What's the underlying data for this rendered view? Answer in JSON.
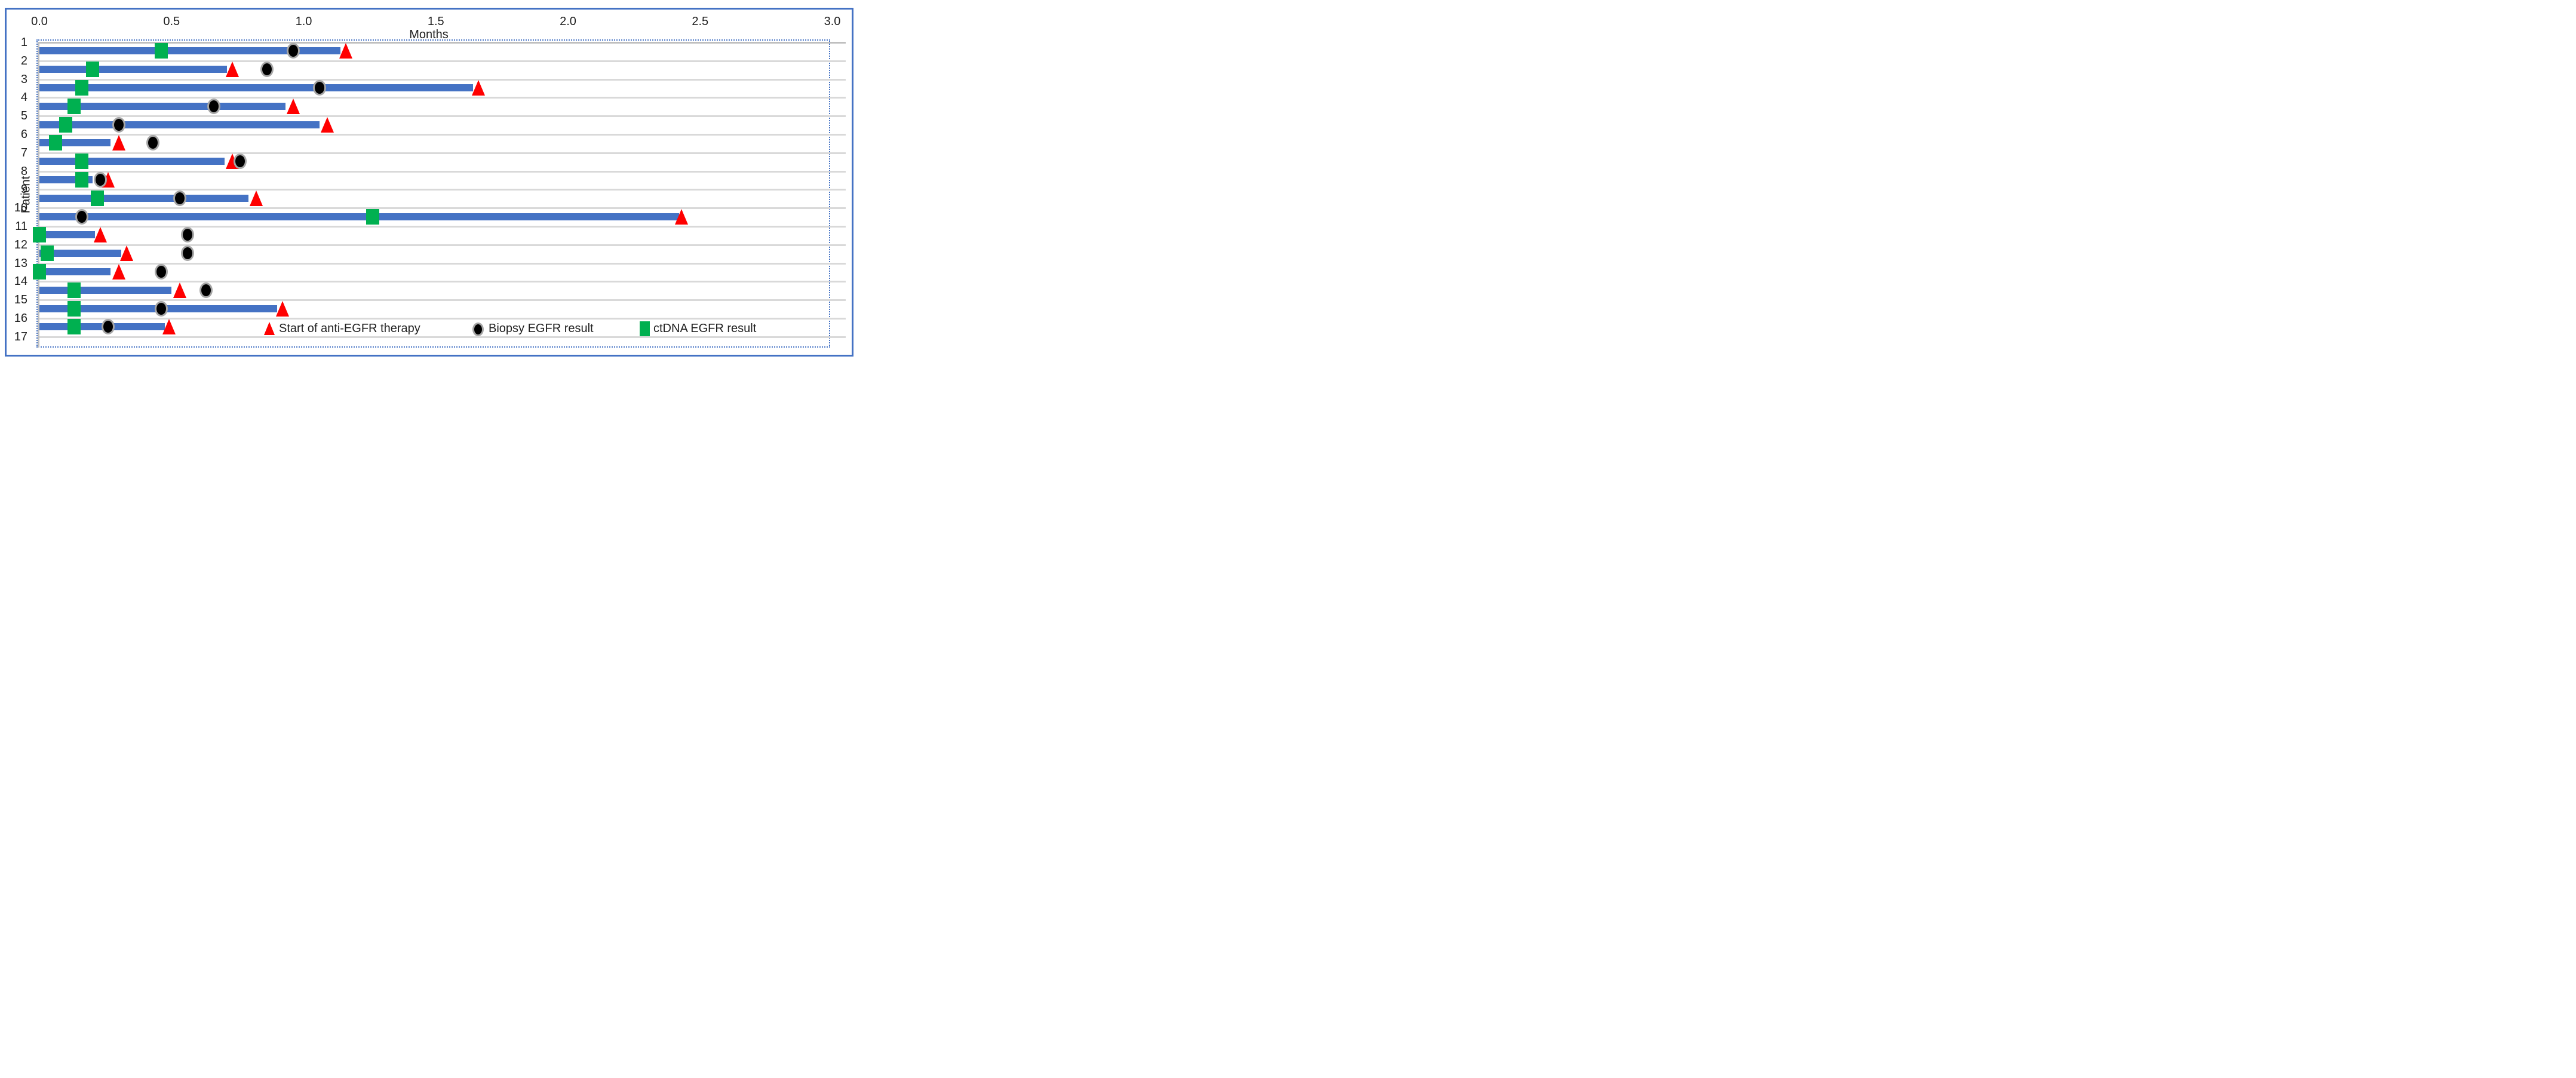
{
  "chart_data": {
    "type": "bar",
    "orientation": "horizontal",
    "title": "",
    "xlabel": "Months",
    "ylabel": "Patient",
    "xlim": [
      0.0,
      3.0
    ],
    "x_ticks": [
      "0.0",
      "0.5",
      "1.0",
      "1.5",
      "2.0",
      "2.5",
      "3.0"
    ],
    "y_ticks": [
      "1",
      "2",
      "3",
      "4",
      "5",
      "6",
      "7",
      "8",
      "9",
      "10",
      "11",
      "12",
      "13",
      "14",
      "15",
      "16",
      "17"
    ],
    "grid": "horizontal-gridlines-on",
    "legend_position": "inside-bottom-right",
    "series_legend": [
      {
        "marker": "red-triangle",
        "label": "Start of anti-EGFR therapy"
      },
      {
        "marker": "black-circle",
        "label": "Biopsy EGFR result"
      },
      {
        "marker": "green-square",
        "label": "ctDNA EGFR result"
      }
    ],
    "patients": [
      {
        "patient": 1,
        "bar_end_months": 1.14,
        "ctdna_egfr_months": 0.46,
        "biopsy_egfr_months": 0.96,
        "therapy_start_months": 1.16
      },
      {
        "patient": 2,
        "bar_end_months": 0.71,
        "ctdna_egfr_months": 0.2,
        "biopsy_egfr_months": 0.86,
        "therapy_start_months": 0.73
      },
      {
        "patient": 3,
        "bar_end_months": 1.64,
        "ctdna_egfr_months": 0.16,
        "biopsy_egfr_months": 1.06,
        "therapy_start_months": 1.66
      },
      {
        "patient": 4,
        "bar_end_months": 0.93,
        "ctdna_egfr_months": 0.13,
        "biopsy_egfr_months": 0.66,
        "therapy_start_months": 0.96
      },
      {
        "patient": 5,
        "bar_end_months": 1.06,
        "ctdna_egfr_months": 0.1,
        "biopsy_egfr_months": 0.3,
        "therapy_start_months": 1.09
      },
      {
        "patient": 6,
        "bar_end_months": 0.27,
        "ctdna_egfr_months": 0.06,
        "biopsy_egfr_months": 0.43,
        "therapy_start_months": 0.3
      },
      {
        "patient": 7,
        "bar_end_months": 0.7,
        "ctdna_egfr_months": 0.16,
        "biopsy_egfr_months": 0.76,
        "therapy_start_months": 0.73
      },
      {
        "patient": 8,
        "bar_end_months": 0.2,
        "ctdna_egfr_months": 0.16,
        "biopsy_egfr_months": 0.23,
        "therapy_start_months": 0.26
      },
      {
        "patient": 9,
        "bar_end_months": 0.79,
        "ctdna_egfr_months": 0.22,
        "biopsy_egfr_months": 0.53,
        "therapy_start_months": 0.82
      },
      {
        "patient": 10,
        "bar_end_months": 2.42,
        "ctdna_egfr_months": 1.26,
        "biopsy_egfr_months": 0.16,
        "therapy_start_months": 2.43
      },
      {
        "patient": 11,
        "bar_end_months": 0.21,
        "ctdna_egfr_months": 0.0,
        "biopsy_egfr_months": 0.56,
        "therapy_start_months": 0.23
      },
      {
        "patient": 12,
        "bar_end_months": 0.31,
        "ctdna_egfr_months": 0.03,
        "biopsy_egfr_months": 0.56,
        "therapy_start_months": 0.33
      },
      {
        "patient": 13,
        "bar_end_months": 0.27,
        "ctdna_egfr_months": 0.0,
        "biopsy_egfr_months": 0.46,
        "therapy_start_months": 0.3
      },
      {
        "patient": 14,
        "bar_end_months": 0.5,
        "ctdna_egfr_months": 0.13,
        "biopsy_egfr_months": 0.63,
        "therapy_start_months": 0.53
      },
      {
        "patient": 15,
        "bar_end_months": 0.9,
        "ctdna_egfr_months": 0.13,
        "biopsy_egfr_months": 0.46,
        "therapy_start_months": 0.92
      },
      {
        "patient": 16,
        "bar_end_months": 0.475,
        "ctdna_egfr_months": 0.13,
        "biopsy_egfr_months": 0.26,
        "therapy_start_months": 0.49
      }
    ],
    "colors": {
      "bar": "#4472C4",
      "therapy_triangle": "#FF0000",
      "biopsy_circle_fill": "#000000",
      "biopsy_circle_outline": "#A6A6A6",
      "ctdna_square": "#00B050",
      "gridline": "#D9D9D9",
      "axis_line": "#BFBFBF",
      "frame_border": "#4472C4",
      "dashed_selection_border": "#4472C4"
    }
  }
}
